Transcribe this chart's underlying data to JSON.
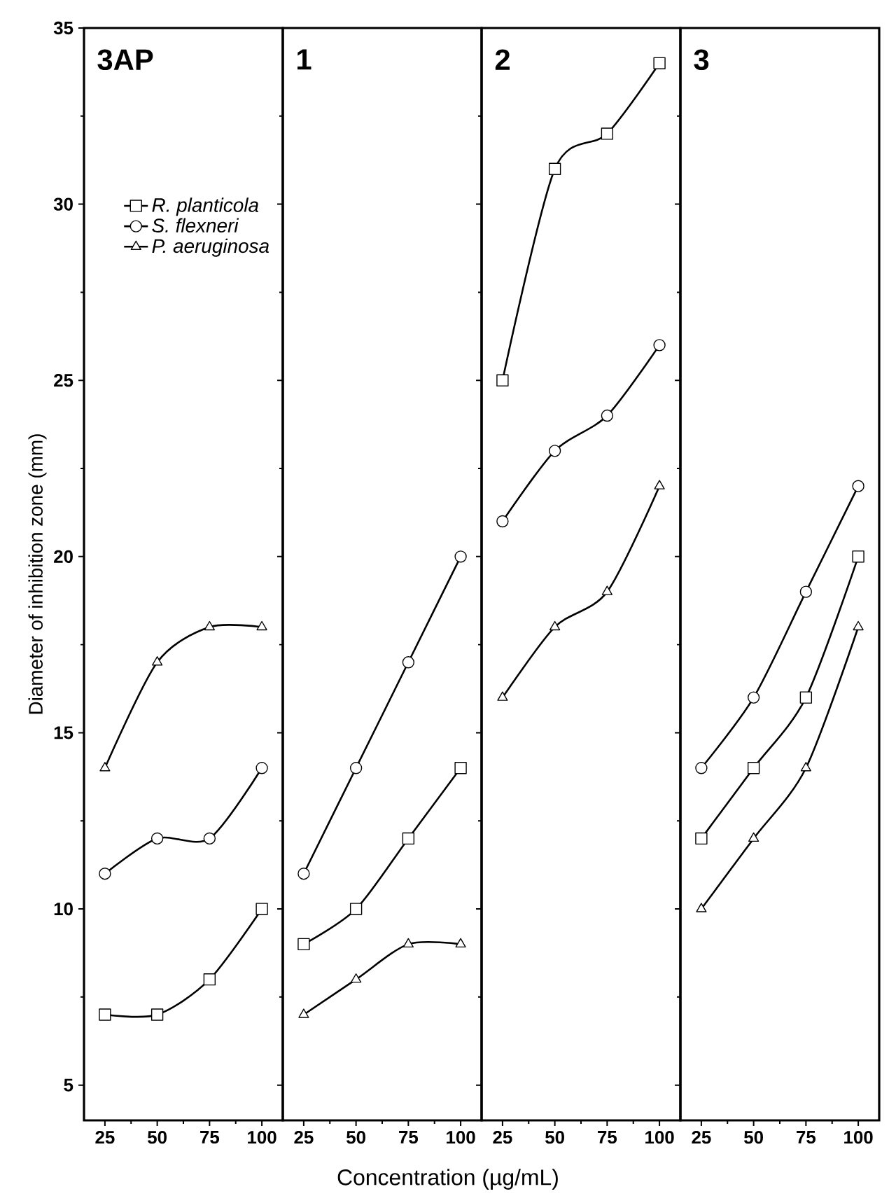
{
  "chart_data": [
    {
      "type": "line",
      "title": "3AP",
      "ylabel": "Diameter of inhibition zone (mm)",
      "x": [
        25,
        50,
        75,
        100
      ],
      "xlim": [
        15,
        110
      ],
      "xticks": [
        25,
        50,
        75,
        100
      ],
      "ylim": [
        4,
        35
      ],
      "yticks": [
        5,
        10,
        15,
        20,
        25,
        30,
        35
      ],
      "legend": "top right",
      "line_style": "solid",
      "grid": false,
      "series": [
        {
          "name": "R. planticola",
          "color": "#000000",
          "marker": "square",
          "values": [
            7,
            7,
            8,
            10
          ]
        },
        {
          "name": "S. flexneri",
          "color": "#000000",
          "marker": "circle",
          "values": [
            11,
            12,
            12,
            14
          ]
        },
        {
          "name": "P. aeruginosa",
          "color": "#000000",
          "marker": "triangle",
          "values": [
            14,
            17,
            18,
            18
          ]
        }
      ]
    },
    {
      "type": "line",
      "title": "1",
      "xlabel": "Concentration (µg/mL)",
      "x": [
        25,
        50,
        75,
        100
      ],
      "xlim": [
        15,
        110
      ],
      "xticks": [
        25,
        50,
        75,
        100
      ],
      "ylim": [
        4,
        35
      ],
      "yticks": [
        5,
        10,
        15,
        20,
        25,
        30,
        35
      ],
      "tick_labels": "x",
      "line_style": "solid",
      "grid": false,
      "series": [
        {
          "color": "#000000",
          "marker": "square",
          "values": [
            9,
            10,
            12,
            14
          ]
        },
        {
          "color": "#000000",
          "marker": "circle",
          "values": [
            11,
            14,
            17,
            20
          ]
        },
        {
          "color": "#000000",
          "marker": "triangle",
          "values": [
            7,
            8,
            9,
            9
          ]
        }
      ]
    },
    {
      "type": "line",
      "title": "2",
      "x": [
        25,
        50,
        75,
        100
      ],
      "xlim": [
        15,
        110
      ],
      "xticks": [
        25,
        50,
        75,
        100
      ],
      "ylim": [
        4,
        35
      ],
      "yticks": [
        5,
        10,
        15,
        20,
        25,
        30,
        35
      ],
      "tick_labels": "x",
      "line_style": "solid",
      "grid": false,
      "series": [
        {
          "color": "#000000",
          "marker": "square",
          "values": [
            25,
            31,
            32,
            34
          ]
        },
        {
          "color": "#000000",
          "marker": "circle",
          "values": [
            21,
            23,
            24,
            26
          ]
        },
        {
          "color": "#000000",
          "marker": "triangle",
          "values": [
            16,
            18,
            19,
            22
          ]
        }
      ]
    },
    {
      "type": "line",
      "title": "3",
      "x": [
        25,
        50,
        75,
        100
      ],
      "xlim": [
        15,
        110
      ],
      "xticks": [
        25,
        50,
        75,
        100
      ],
      "ylim": [
        4,
        35
      ],
      "yticks": [
        5,
        10,
        15,
        20,
        25,
        30,
        35
      ],
      "tick_labels": "x",
      "line_style": "solid",
      "grid": false,
      "series": [
        {
          "color": "#000000",
          "marker": "square",
          "values": [
            12,
            14,
            16,
            20
          ]
        },
        {
          "color": "#000000",
          "marker": "circle",
          "values": [
            14,
            16,
            19,
            22
          ]
        },
        {
          "color": "#000000",
          "marker": "triangle",
          "values": [
            10,
            12,
            14,
            18
          ]
        }
      ]
    }
  ]
}
